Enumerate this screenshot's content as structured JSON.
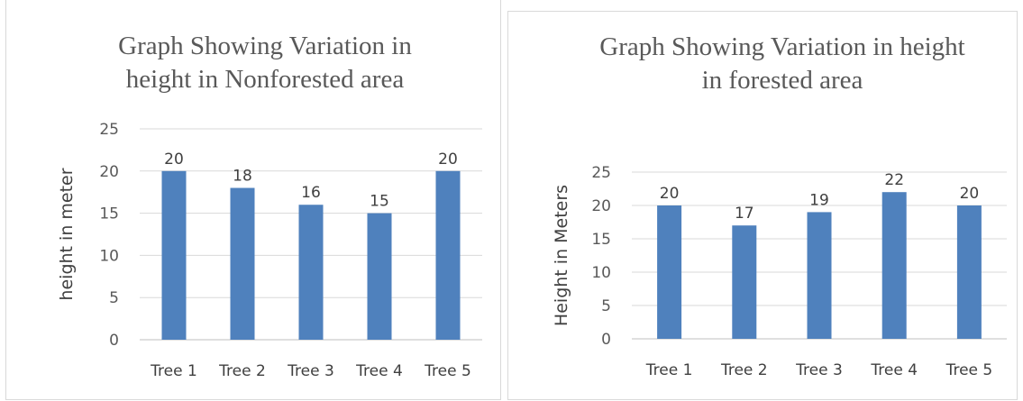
{
  "colors": {
    "bar": "#4f81bd",
    "text": "#595959",
    "grid": "#d9d9d9"
  },
  "chart_data": [
    {
      "type": "bar",
      "title_lines": [
        "Graph Showing Variation in",
        "height in Nonforested area"
      ],
      "categories": [
        "Tree 1",
        "Tree 2",
        "Tree 3",
        "Tree 4",
        "Tree 5"
      ],
      "values": [
        20,
        18,
        16,
        15,
        20
      ],
      "ylabel": "height in meter",
      "xlabel": "",
      "ylim": [
        0,
        25
      ],
      "yticks": [
        0,
        5,
        10,
        15,
        20,
        25
      ],
      "grid": true,
      "data_labels": true
    },
    {
      "type": "bar",
      "title_lines": [
        "Graph Showing Variation in height",
        "in forested area"
      ],
      "categories": [
        "Tree 1",
        "Tree 2",
        "Tree 3",
        "Tree 4",
        "Tree 5"
      ],
      "values": [
        20,
        17,
        19,
        22,
        20
      ],
      "ylabel": "Height in Meters",
      "xlabel": "",
      "ylim": [
        0,
        25
      ],
      "yticks": [
        0,
        5,
        10,
        15,
        20,
        25
      ],
      "grid": true,
      "data_labels": true
    }
  ]
}
